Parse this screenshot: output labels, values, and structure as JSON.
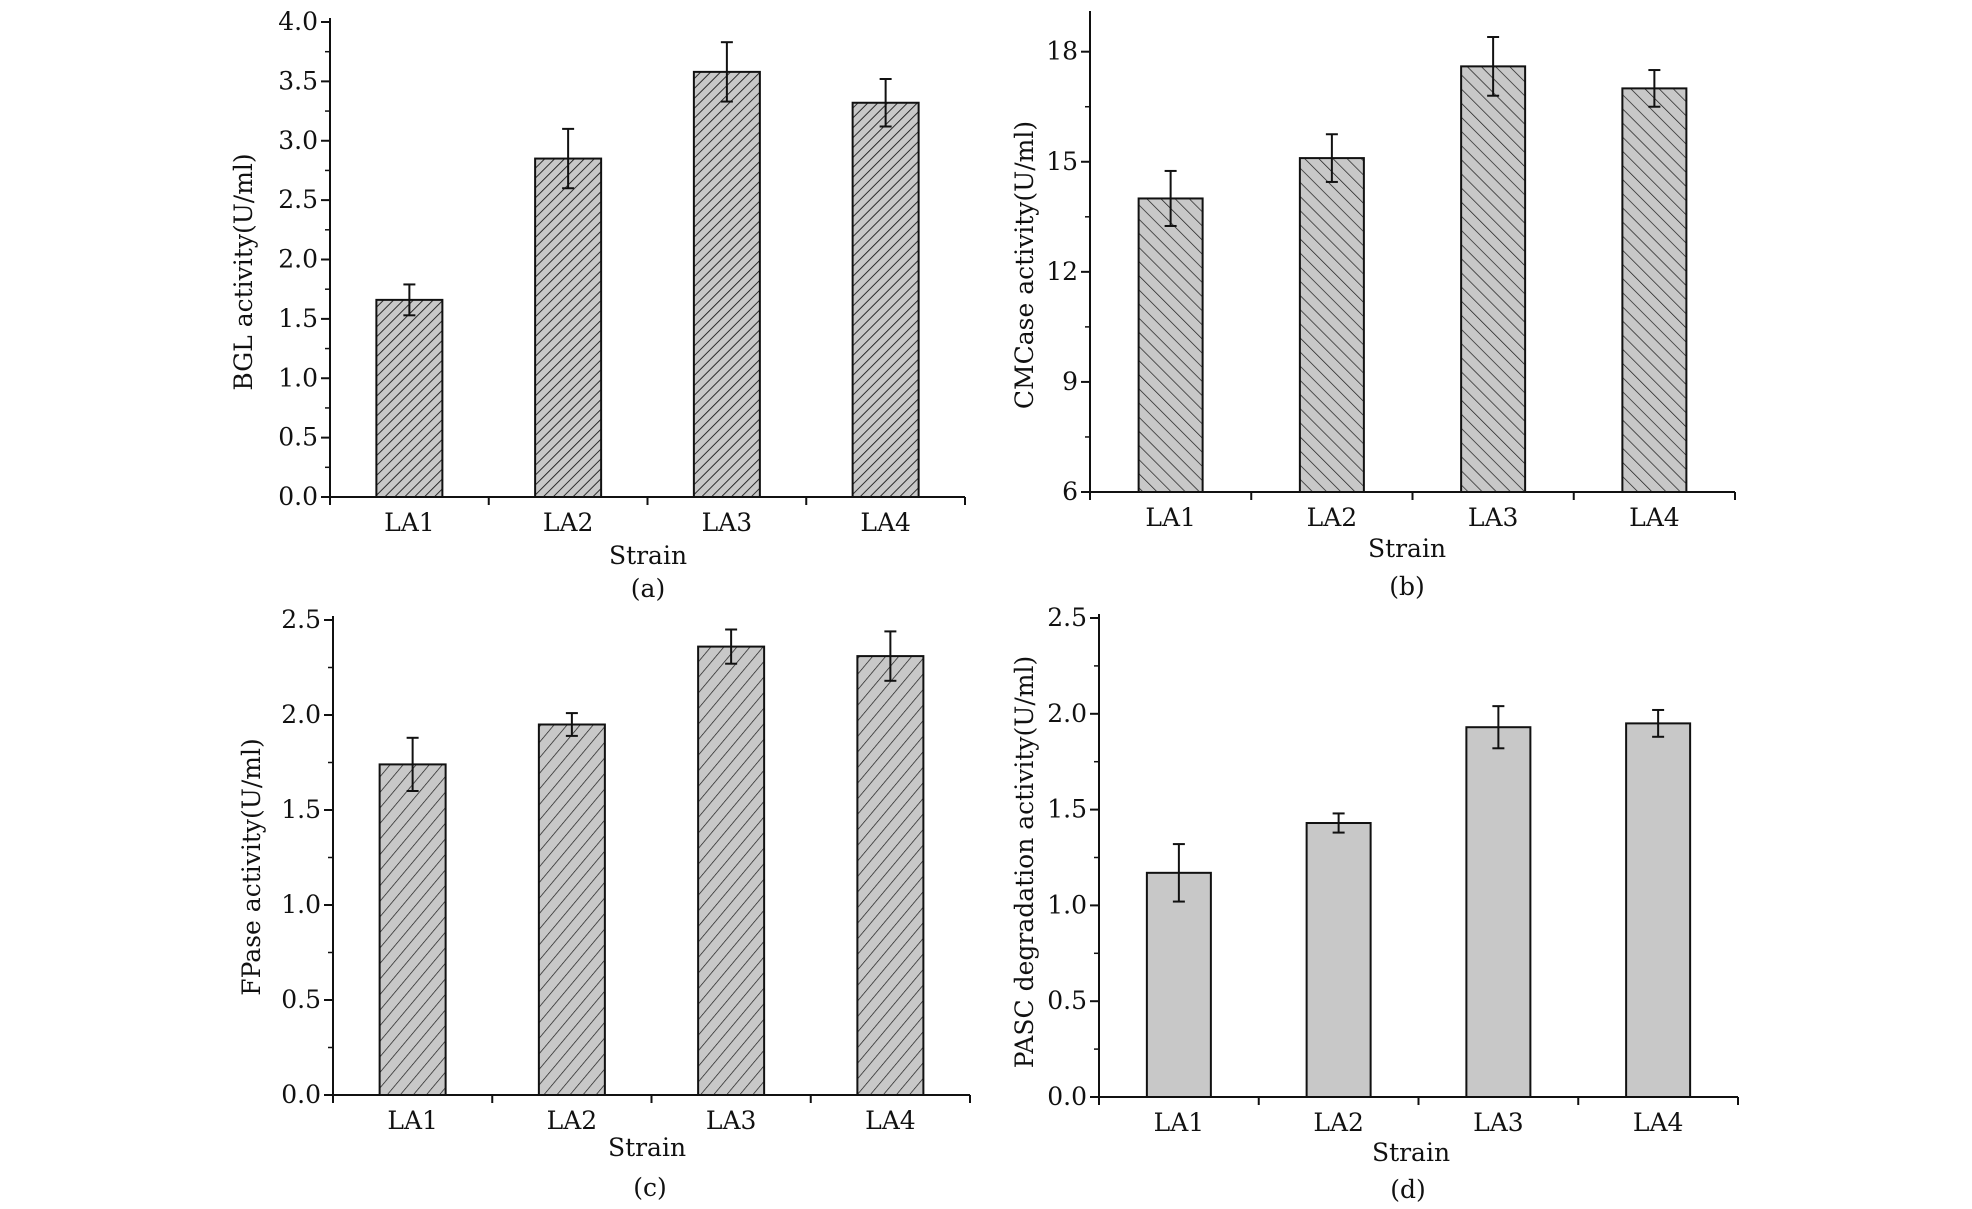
{
  "chart_data": [
    {
      "panel": "(a)",
      "type": "bar",
      "categories": [
        "LA1",
        "LA2",
        "LA3",
        "LA4"
      ],
      "values": [
        1.66,
        2.85,
        3.58,
        3.32
      ],
      "errors": [
        0.13,
        0.25,
        0.25,
        0.2
      ],
      "xlabel": "Strain",
      "ylabel": "BGL activity(U/ml)",
      "ylim": [
        0,
        4.0
      ],
      "yticks": [
        "0.0",
        "0.5",
        "1.0",
        "1.5",
        "2.0",
        "2.5",
        "3.0",
        "3.5",
        "4.0"
      ],
      "fill": "dense right-leaning hatch"
    },
    {
      "panel": "(b)",
      "type": "bar",
      "categories": [
        "LA1",
        "LA2",
        "LA3",
        "LA4"
      ],
      "values": [
        14.0,
        15.1,
        17.6,
        17.0
      ],
      "errors": [
        0.75,
        0.65,
        0.8,
        0.5
      ],
      "xlabel": "Strain",
      "ylabel": "CMCase activity(U/ml)",
      "ylim": [
        6,
        19
      ],
      "yticks": [
        "6",
        "9",
        "12",
        "15",
        "18"
      ],
      "fill": "left-leaning hatch"
    },
    {
      "panel": "(c)",
      "type": "bar",
      "categories": [
        "LA1",
        "LA2",
        "LA3",
        "LA4"
      ],
      "values": [
        1.74,
        1.95,
        2.36,
        2.31
      ],
      "errors": [
        0.14,
        0.06,
        0.09,
        0.13
      ],
      "xlabel": "Strain",
      "ylabel": "FPase activity(U/ml)",
      "ylim": [
        0,
        2.5
      ],
      "yticks": [
        "0.0",
        "0.5",
        "1.0",
        "1.5",
        "2.0",
        "2.5"
      ],
      "fill": "right-leaning hatch"
    },
    {
      "panel": "(d)",
      "type": "bar",
      "categories": [
        "LA1",
        "LA2",
        "LA3",
        "LA4"
      ],
      "values": [
        1.17,
        1.43,
        1.93,
        1.95
      ],
      "errors": [
        0.15,
        0.05,
        0.11,
        0.07
      ],
      "xlabel": "Strain",
      "ylabel": "PASC degradation activity(U/ml)",
      "ylim": [
        0,
        2.5
      ],
      "yticks": [
        "0.0",
        "0.5",
        "1.0",
        "1.5",
        "2.0",
        "2.5"
      ],
      "fill": "solid"
    }
  ],
  "colors": {
    "bar_fill": "#c8c8c8",
    "hatch_line": "#1a1a1a",
    "axis": "#111111"
  }
}
